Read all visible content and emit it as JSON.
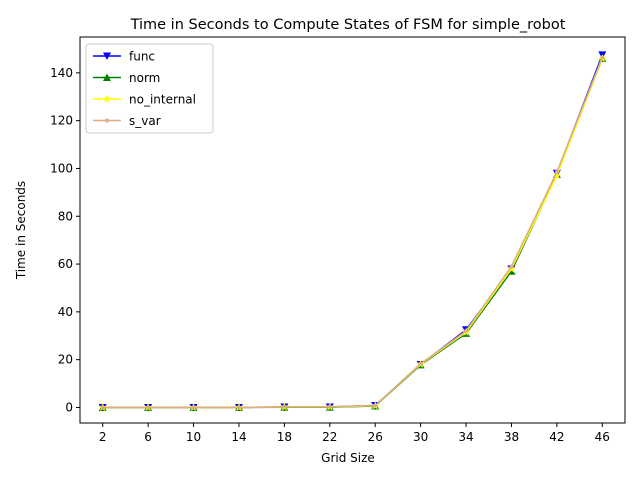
{
  "chart_data": {
    "type": "line",
    "title": "Time in Seconds to Compute States of FSM for simple_robot",
    "xlabel": "Grid Size",
    "ylabel": "Time in Seconds",
    "categories": [
      "2",
      "6",
      "10",
      "14",
      "18",
      "22",
      "26",
      "30",
      "34",
      "38",
      "42",
      "46"
    ],
    "y_ticks": [
      "0",
      "20",
      "40",
      "60",
      "80",
      "100",
      "120",
      "140"
    ],
    "ylim": [
      -6.5,
      155
    ],
    "grid": false,
    "legend": "upper-left",
    "series": [
      {
        "name": "func",
        "color": "#0000ff",
        "marker": "triangle-down",
        "values": [
          0.0,
          0.0,
          0.0,
          0.0,
          0.2,
          0.2,
          0.8,
          18.0,
          32.5,
          58.0,
          98.0,
          147.5
        ]
      },
      {
        "name": "norm",
        "color": "#008000",
        "marker": "triangle-up",
        "values": [
          0.0,
          0.0,
          0.0,
          0.0,
          0.1,
          0.1,
          0.6,
          17.8,
          31.0,
          57.0,
          97.5,
          146.0
        ]
      },
      {
        "name": "no_internal",
        "color": "#ffff00",
        "marker": "star",
        "values": [
          0.0,
          0.0,
          0.0,
          0.0,
          0.2,
          0.2,
          0.7,
          18.1,
          31.5,
          58.0,
          97.0,
          146.0
        ]
      },
      {
        "name": "s_var",
        "color": "#deaa87",
        "marker": "dot",
        "values": [
          0.0,
          0.0,
          0.0,
          0.0,
          0.3,
          0.3,
          0.8,
          18.3,
          32.0,
          59.0,
          98.5,
          146.5
        ]
      }
    ]
  }
}
